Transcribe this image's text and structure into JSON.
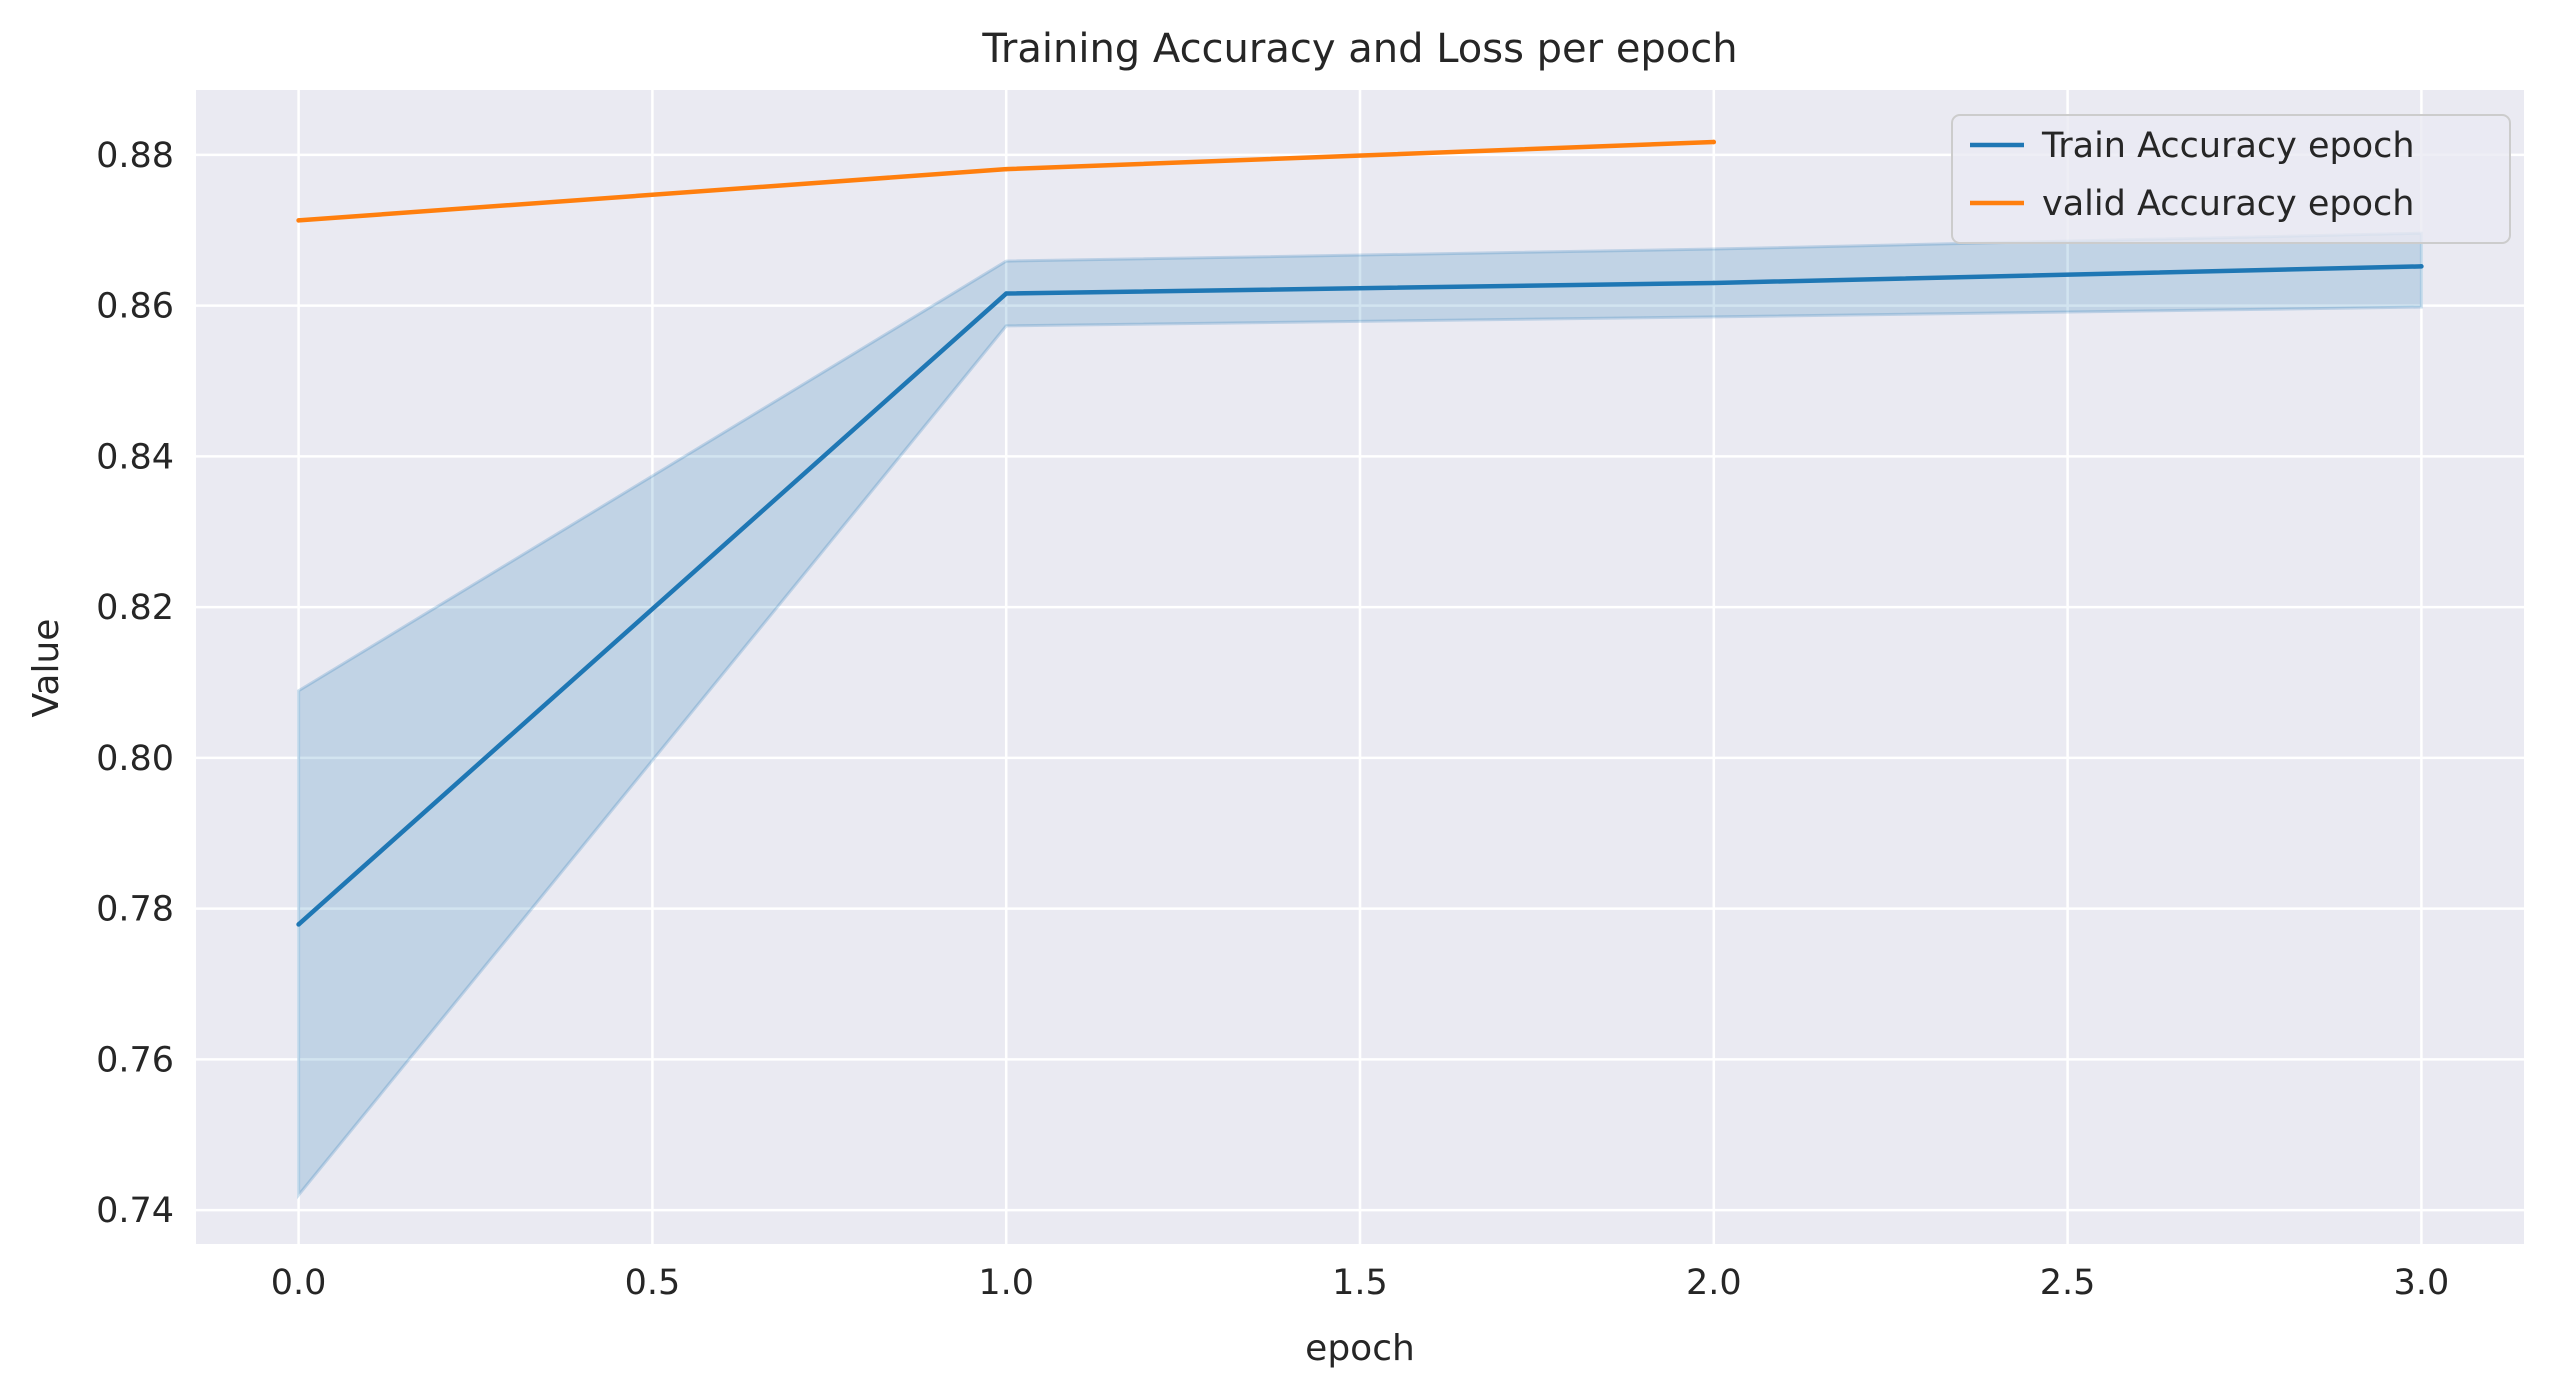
{
  "chart_data": {
    "type": "line",
    "title": "Training Accuracy and Loss per epoch",
    "xlabel": "epoch",
    "ylabel": "Value",
    "xlim": [
      -0.145,
      3.145
    ],
    "ylim": [
      0.7355,
      0.8886
    ],
    "x_ticks": [
      0.0,
      0.5,
      1.0,
      1.5,
      2.0,
      2.5,
      3.0
    ],
    "x_tick_labels": [
      "0.0",
      "0.5",
      "1.0",
      "1.5",
      "2.0",
      "2.5",
      "3.0"
    ],
    "y_ticks": [
      0.74,
      0.76,
      0.78,
      0.8,
      0.82,
      0.84,
      0.86,
      0.88
    ],
    "y_tick_labels": [
      "0.74",
      "0.76",
      "0.78",
      "0.80",
      "0.82",
      "0.84",
      "0.86",
      "0.88"
    ],
    "grid": true,
    "legend_position": "top-right",
    "background_color": "#eaeaf2",
    "grid_color": "#ffffff",
    "series": [
      {
        "name": "Train Accuracy epoch",
        "color": "#1f77b4",
        "x": [
          0,
          1,
          2,
          3
        ],
        "y": [
          0.7779,
          0.8616,
          0.863,
          0.8652
        ],
        "ci_lower": [
          0.742,
          0.8573,
          0.8585,
          0.8598
        ],
        "ci_upper": [
          0.8089,
          0.8659,
          0.8675,
          0.8696
        ]
      },
      {
        "name": "valid Accuracy epoch",
        "color": "#ff7f0e",
        "x": [
          0,
          1,
          2
        ],
        "y": [
          0.8713,
          0.8781,
          0.8817
        ]
      }
    ]
  }
}
